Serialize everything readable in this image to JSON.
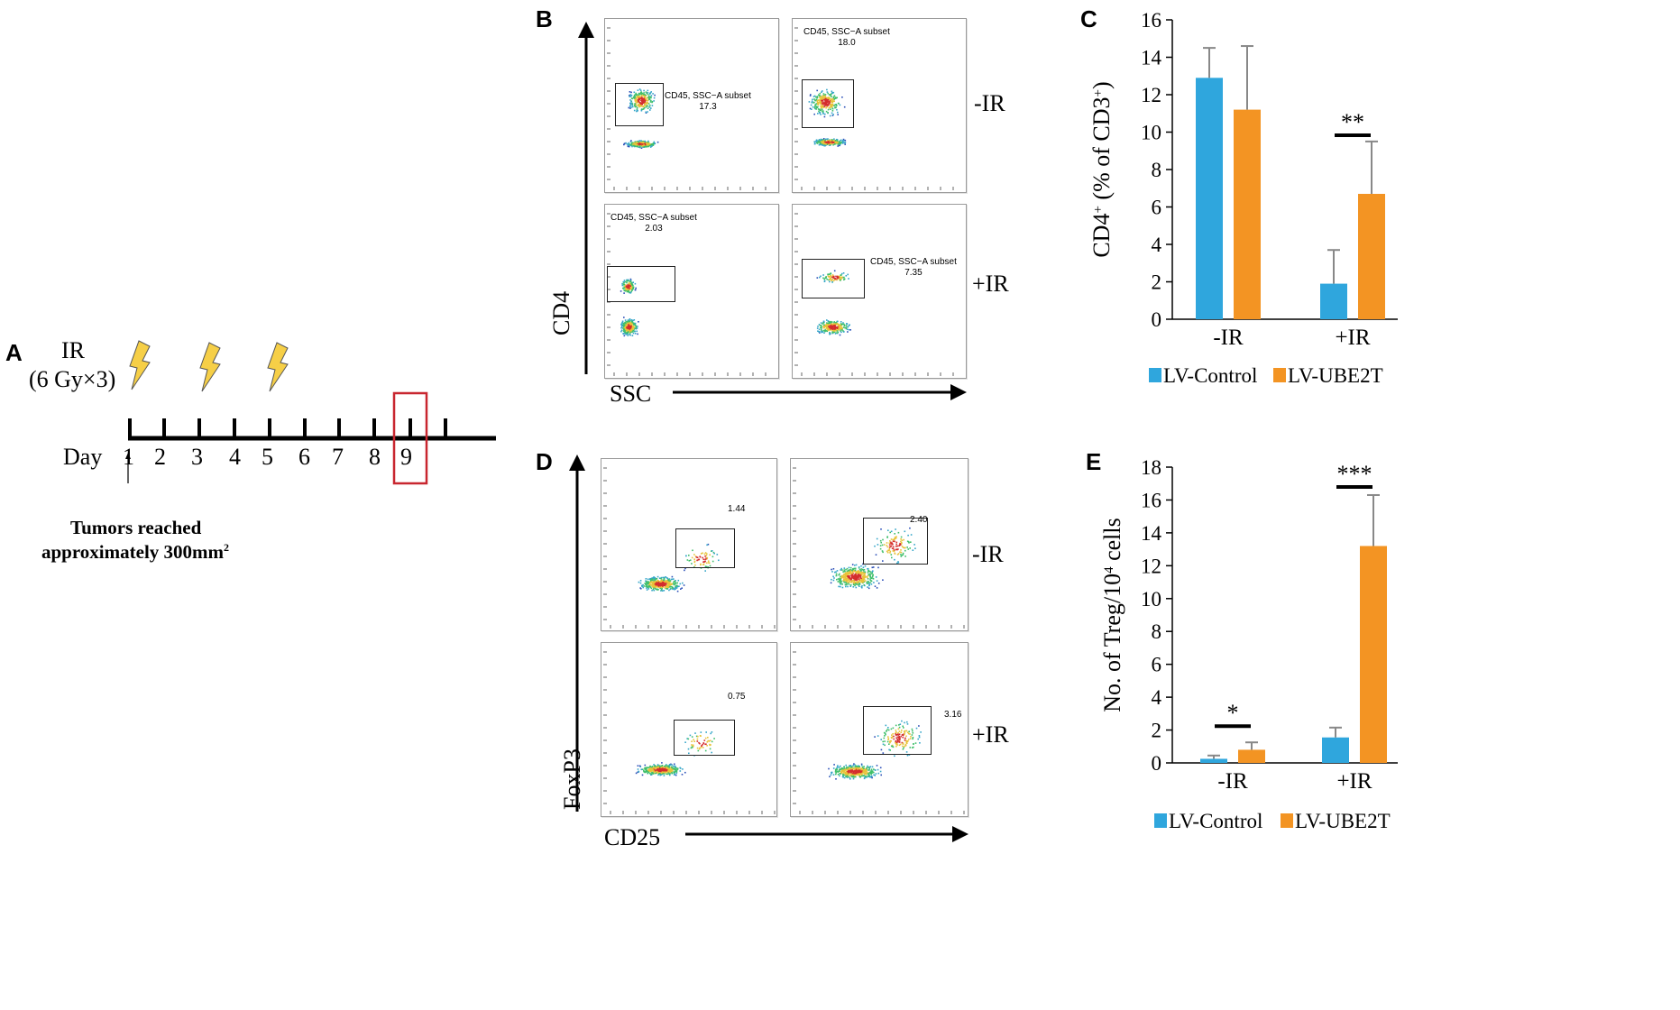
{
  "panels": {
    "a": "A",
    "b": "B",
    "c": "C",
    "d": "D",
    "e": "E"
  },
  "timeline": {
    "ir_label": "IR",
    "ir_dose": "(6 Gy×3)",
    "day_label": "Day",
    "days": [
      "1",
      "2",
      "3",
      "4",
      "5",
      "6",
      "7",
      "8",
      "9"
    ],
    "ir_days": [
      "1",
      "3",
      "5"
    ],
    "highlight_day": "9",
    "note_line1": "Tumors reached",
    "note_line2": "approximately 300mm",
    "note_sup": "2"
  },
  "flow_b": {
    "y_axis": "CD4",
    "x_axis": "SSC",
    "rows": [
      {
        "label": "-IR",
        "plots": [
          {
            "gate": "CD45, SSC−A subset",
            "value": "17.3"
          },
          {
            "gate": "CD45, SSC−A subset",
            "value": "18.0"
          }
        ]
      },
      {
        "label": "+IR",
        "plots": [
          {
            "gate": "CD45, SSC−A subset",
            "value": "2.03"
          },
          {
            "gate": "CD45, SSC−A subset",
            "value": "7.35"
          }
        ]
      }
    ]
  },
  "flow_d": {
    "y_axis": "FoxP3",
    "x_axis": "CD25",
    "rows": [
      {
        "label": "-IR",
        "plots": [
          {
            "value": "1.44"
          },
          {
            "value": "2.40"
          }
        ]
      },
      {
        "label": "+IR",
        "plots": [
          {
            "value": "0.75"
          },
          {
            "value": "3.16"
          }
        ]
      }
    ]
  },
  "colors": {
    "control": "#2fa6dd",
    "ube2t": "#f39423"
  },
  "chart_data": [
    {
      "type": "bar",
      "panel": "C",
      "categories": [
        "-IR",
        "+IR"
      ],
      "series": [
        {
          "name": "LV-Control",
          "values": [
            12.9,
            1.9
          ],
          "errors": [
            1.6,
            1.8
          ]
        },
        {
          "name": "LV-UBE2T",
          "values": [
            11.2,
            6.7
          ],
          "errors": [
            3.4,
            2.8
          ]
        }
      ],
      "ylabel_main": "CD4",
      "ylabel_sup": "+",
      "ylabel_rest": " (% of CD3",
      "ylabel_sup2": "+",
      "ylabel_end": ")",
      "ylim": [
        0,
        16
      ],
      "yticks": [
        "0",
        "2",
        "4",
        "6",
        "8",
        "10",
        "12",
        "14",
        "16"
      ],
      "significance": [
        {
          "category": "+IR",
          "text": "**"
        }
      ],
      "legend": "bottom"
    },
    {
      "type": "bar",
      "panel": "E",
      "categories": [
        "-IR",
        "+IR"
      ],
      "series": [
        {
          "name": "LV-Control",
          "values": [
            0.25,
            1.55
          ],
          "errors": [
            0.2,
            0.6
          ]
        },
        {
          "name": "LV-UBE2T",
          "values": [
            0.8,
            13.2
          ],
          "errors": [
            0.45,
            3.1
          ]
        }
      ],
      "ylabel_main": "No. of Treg/10",
      "ylabel_sup": "4",
      "ylabel_rest": " cells",
      "ylim": [
        0,
        18
      ],
      "yticks": [
        "0",
        "2",
        "4",
        "6",
        "8",
        "10",
        "12",
        "14",
        "16",
        "18"
      ],
      "significance": [
        {
          "category": "-IR",
          "text": "*"
        },
        {
          "category": "+IR",
          "text": "***"
        }
      ],
      "legend": "bottom"
    }
  ]
}
